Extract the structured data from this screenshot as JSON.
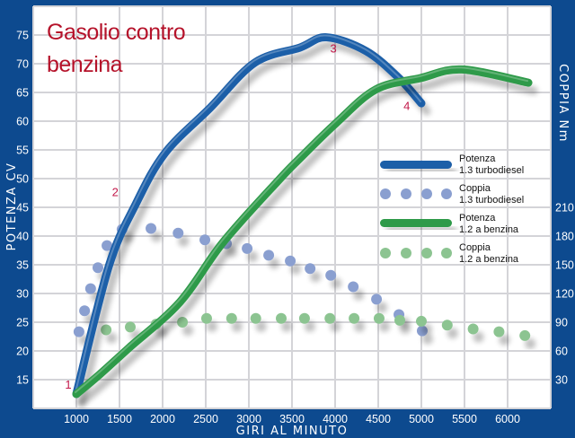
{
  "chart_data": {
    "type": "line",
    "title": "Gasolio contro benzina",
    "xlabel": "GIRI AL MINUTO",
    "ylabel": "POTENZA CV",
    "y2label": "COPPIA Nm",
    "xlim": [
      500,
      6500
    ],
    "ylim": [
      10,
      80
    ],
    "y2lim": [
      0,
      420
    ],
    "xticks": [
      1000,
      1500,
      2000,
      2500,
      3000,
      3500,
      4000,
      4500,
      5000,
      5500,
      6000
    ],
    "yticks": [
      15,
      20,
      25,
      30,
      35,
      40,
      45,
      50,
      55,
      60,
      65,
      70,
      75
    ],
    "y2ticks": [
      30,
      60,
      90,
      120,
      150,
      180,
      210
    ],
    "grid": true,
    "legend_position": "right",
    "series": [
      {
        "name": "Potenza 1.3 turbodiesel",
        "axis": "left",
        "style": "line",
        "color": "#1f5fa8",
        "x": [
          1000,
          1375,
          1690,
          2030,
          2550,
          3070,
          3590,
          3900,
          4360,
          4740,
          5000
        ],
        "y": [
          12.5,
          34.7,
          45.6,
          54.5,
          62.3,
          70.2,
          72.8,
          74.6,
          72.2,
          67.5,
          63.1
        ]
      },
      {
        "name": "Coppia 1.3 turbodiesel",
        "axis": "right",
        "style": "dots",
        "color": "#8a9fd0",
        "x": [
          1030,
          1095,
          1165,
          1250,
          1355,
          1530,
          1865,
          2180,
          2490,
          2740,
          2980,
          3230,
          3480,
          3710,
          3950,
          4210,
          4480,
          4740,
          5010
        ],
        "y": [
          80,
          102,
          125,
          147,
          170,
          187,
          188,
          183,
          176,
          172,
          167,
          160,
          154,
          146,
          139,
          127,
          114,
          98,
          81
        ]
      },
      {
        "name": "Potenza 1.2 a benzina",
        "axis": "left",
        "style": "line",
        "color": "#2f9a48",
        "x": [
          1000,
          1270,
          1615,
          2200,
          2700,
          3350,
          3590,
          4000,
          4470,
          4990,
          5470,
          6240
        ],
        "y": [
          12.5,
          15.9,
          20.6,
          28.5,
          38.9,
          49.8,
          53.5,
          59.5,
          65.5,
          67.5,
          69.0,
          66.7
        ]
      },
      {
        "name": "Coppia 1.2 a benzina",
        "axis": "right",
        "style": "dots",
        "color": "#8cc491",
        "x": [
          1345,
          1625,
          1925,
          2230,
          2510,
          2800,
          3080,
          3375,
          3645,
          3940,
          4220,
          4510,
          4750,
          5000,
          5300,
          5600,
          5900,
          6200
        ],
        "y": [
          82,
          85,
          88,
          90,
          94,
          94,
          94,
          94,
          94,
          94,
          94,
          94,
          92,
          91,
          87,
          83,
          80,
          76
        ]
      }
    ],
    "annotations": [
      {
        "text": "1",
        "x": 1000,
        "y": 12.5
      },
      {
        "text": "2",
        "x": 1450,
        "y": 46
      },
      {
        "text": "3",
        "x": 3980,
        "y": 71
      },
      {
        "text": "4",
        "x": 4830,
        "y": 61
      }
    ]
  },
  "legend": [
    {
      "line1": "Potenza",
      "line2": "1.3 turbodiesel"
    },
    {
      "line1": "Coppia",
      "line2": "1.3 turbodiesel"
    },
    {
      "line1": "Potenza",
      "line2": "1.2 a benzina"
    },
    {
      "line1": "Coppia",
      "line2": "1.2 a benzina"
    }
  ],
  "title_line1": "Gasolio contro",
  "title_line2": "benzina",
  "colors": {
    "frame": "#0d4a8f",
    "plot_bg": "#ffffff",
    "grid": "#d4d4d8",
    "title": "#b5122a"
  }
}
